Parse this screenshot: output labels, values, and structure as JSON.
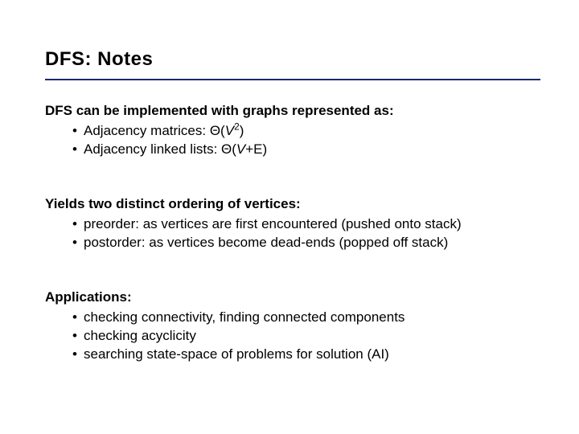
{
  "title": "DFS: Notes",
  "colors": {
    "rule": "#1a2a6c",
    "text": "#000000",
    "bg": "#ffffff"
  },
  "section1": {
    "head": "DFS can be implemented with graphs represented as:",
    "bullets": [
      {
        "prefix": "Adjacency matrices: Θ(",
        "var": "V",
        "sup": "2",
        "suffix": ")"
      },
      {
        "prefix": "Adjacency linked lists: Θ(",
        "var": "V",
        "suffix2": "+E)",
        "sup": ""
      }
    ]
  },
  "section2": {
    "head": "Yields two distinct ordering of vertices:",
    "bullets": [
      "preorder: as vertices are first encountered (pushed onto stack)",
      "postorder: as vertices become dead-ends (popped off stack)"
    ]
  },
  "section3": {
    "head": "Applications:",
    "bullets": [
      "checking connectivity, finding connected components",
      "checking acyclicity",
      "searching state-space of problems for solution (AI)"
    ]
  }
}
